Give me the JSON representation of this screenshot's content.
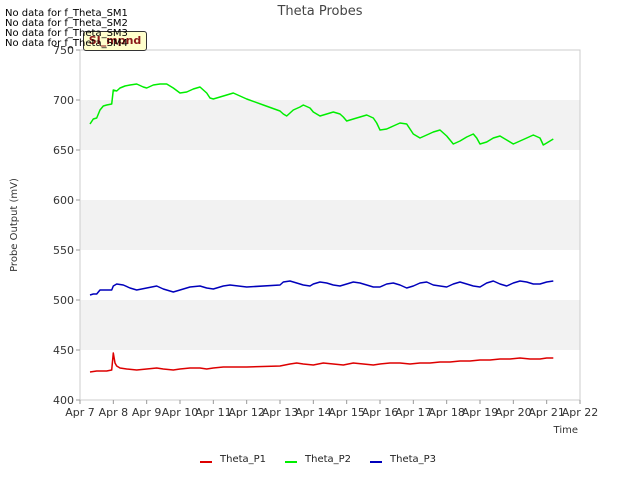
{
  "chart_data": {
    "type": "line",
    "title": "Theta Probes",
    "xlabel": "Time",
    "ylabel": "Probe Output (mV)",
    "ylim": [
      400,
      750
    ],
    "yticks": [
      400,
      450,
      500,
      550,
      600,
      650,
      700,
      750
    ],
    "xlim": [
      0,
      15
    ],
    "xticks": [
      "Apr 7",
      "Apr 8",
      "Apr 9",
      "Apr 10",
      "Apr 11",
      "Apr 12",
      "Apr 13",
      "Apr 14",
      "Apr 15",
      "Apr 16",
      "Apr 17",
      "Apr 18",
      "Apr 19",
      "Apr 20",
      "Apr 21",
      "Apr 22"
    ],
    "grid_bands": true,
    "legend_position": "bottom",
    "series": [
      {
        "name": "Theta_P1",
        "color": "#dd0000",
        "x": [
          0.3,
          0.5,
          0.8,
          0.95,
          1.0,
          1.05,
          1.1,
          1.2,
          1.4,
          1.7,
          2.0,
          2.3,
          2.5,
          2.8,
          3.0,
          3.3,
          3.6,
          3.8,
          4.0,
          4.3,
          4.5,
          4.8,
          5.0,
          6.0,
          6.3,
          6.5,
          6.7,
          7.0,
          7.3,
          7.6,
          7.9,
          8.2,
          8.5,
          8.8,
          9.0,
          9.3,
          9.6,
          9.9,
          10.2,
          10.5,
          10.8,
          11.1,
          11.4,
          11.7,
          12.0,
          12.3,
          12.6,
          12.9,
          13.2,
          13.5,
          13.8,
          14.0,
          14.2
        ],
        "values": [
          428,
          429,
          429,
          430,
          447,
          437,
          434,
          432,
          431,
          430,
          431,
          432,
          431,
          430,
          431,
          432,
          432,
          431,
          432,
          433,
          433,
          433,
          433,
          434,
          436,
          437,
          436,
          435,
          437,
          436,
          435,
          437,
          436,
          435,
          436,
          437,
          437,
          436,
          437,
          437,
          438,
          438,
          439,
          439,
          440,
          440,
          441,
          441,
          442,
          441,
          441,
          442,
          442
        ]
      },
      {
        "name": "Theta_P2",
        "color": "#00ee00",
        "x": [
          0.3,
          0.4,
          0.5,
          0.6,
          0.7,
          0.8,
          0.95,
          1.0,
          1.1,
          1.2,
          1.35,
          1.5,
          1.7,
          1.9,
          2.0,
          2.2,
          2.4,
          2.6,
          2.8,
          3.0,
          3.2,
          3.4,
          3.6,
          3.8,
          3.9,
          4.0,
          4.2,
          4.4,
          4.6,
          4.8,
          5.0,
          5.5,
          6.0,
          6.1,
          6.2,
          6.4,
          6.6,
          6.7,
          6.9,
          7.0,
          7.2,
          7.4,
          7.6,
          7.8,
          7.9,
          8.0,
          8.2,
          8.4,
          8.6,
          8.8,
          8.9,
          9.0,
          9.2,
          9.4,
          9.6,
          9.8,
          9.9,
          10.0,
          10.2,
          10.4,
          10.6,
          10.8,
          11.0,
          11.2,
          11.4,
          11.6,
          11.8,
          11.9,
          12.0,
          12.2,
          12.4,
          12.6,
          12.8,
          13.0,
          13.2,
          13.4,
          13.6,
          13.8,
          13.9,
          14.0,
          14.2
        ],
        "values": [
          676,
          681,
          682,
          690,
          694,
          695,
          696,
          710,
          709,
          712,
          714,
          715,
          716,
          713,
          712,
          715,
          716,
          716,
          712,
          707,
          708,
          711,
          713,
          707,
          702,
          701,
          703,
          705,
          707,
          704,
          701,
          695,
          689,
          686,
          684,
          690,
          693,
          695,
          692,
          688,
          684,
          686,
          688,
          686,
          683,
          679,
          681,
          683,
          685,
          682,
          677,
          670,
          671,
          674,
          677,
          676,
          671,
          666,
          662,
          665,
          668,
          670,
          664,
          656,
          659,
          663,
          666,
          662,
          656,
          658,
          662,
          664,
          660,
          656,
          659,
          662,
          665,
          662,
          655,
          657,
          661
        ]
      },
      {
        "name": "Theta_P3",
        "color": "#0000bb",
        "x": [
          0.3,
          0.4,
          0.5,
          0.6,
          0.7,
          0.8,
          0.95,
          1.0,
          1.1,
          1.3,
          1.5,
          1.7,
          2.0,
          2.3,
          2.5,
          2.8,
          3.0,
          3.3,
          3.6,
          3.8,
          4.0,
          4.3,
          4.5,
          5.0,
          6.0,
          6.1,
          6.3,
          6.5,
          6.7,
          6.9,
          7.0,
          7.2,
          7.4,
          7.6,
          7.8,
          8.0,
          8.2,
          8.4,
          8.6,
          8.8,
          9.0,
          9.2,
          9.4,
          9.6,
          9.8,
          10.0,
          10.2,
          10.4,
          10.6,
          10.8,
          11.0,
          11.2,
          11.4,
          11.6,
          11.8,
          12.0,
          12.2,
          12.4,
          12.6,
          12.8,
          13.0,
          13.2,
          13.4,
          13.6,
          13.8,
          14.0,
          14.2
        ],
        "values": [
          505,
          506,
          506,
          510,
          510,
          510,
          510,
          514,
          516,
          515,
          512,
          510,
          512,
          514,
          511,
          508,
          510,
          513,
          514,
          512,
          511,
          514,
          515,
          513,
          515,
          518,
          519,
          517,
          515,
          514,
          516,
          518,
          517,
          515,
          514,
          516,
          518,
          517,
          515,
          513,
          513,
          516,
          517,
          515,
          512,
          514,
          517,
          518,
          515,
          514,
          513,
          516,
          518,
          516,
          514,
          513,
          517,
          519,
          516,
          514,
          517,
          519,
          518,
          516,
          516,
          518,
          519
        ]
      }
    ]
  },
  "no_data_messages": [
    "No data for f_Theta_SM1",
    "No data for f_Theta_SM2",
    "No data for f_Theta_SM3",
    "No data for f_Theta_SM4"
  ],
  "stamp_label": "SI_mpnd"
}
